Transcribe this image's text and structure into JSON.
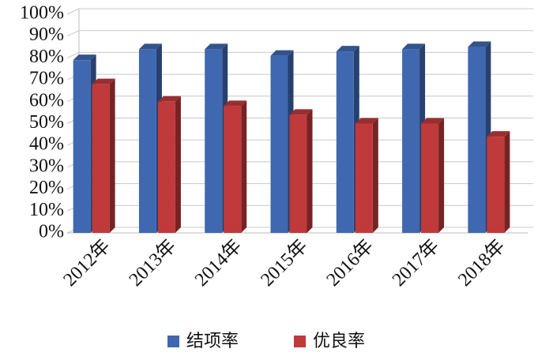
{
  "chart_data": {
    "type": "bar3d",
    "categories": [
      "2012年",
      "2013年",
      "2014年",
      "2015年",
      "2016年",
      "2017年",
      "2018年"
    ],
    "series": [
      {
        "name": "结项率",
        "color": "#4068b0",
        "values": [
          79,
          84,
          84,
          81,
          83,
          84,
          85
        ]
      },
      {
        "name": "优良率",
        "color": "#c0393b",
        "values": [
          68,
          60,
          58,
          54,
          50,
          50,
          44
        ]
      }
    ],
    "ylim": [
      0,
      100
    ],
    "yticks": [
      {
        "value": 0,
        "label": "0%"
      },
      {
        "value": 10,
        "label": "10%"
      },
      {
        "value": 20,
        "label": "20%"
      },
      {
        "value": 30,
        "label": "30%"
      },
      {
        "value": 40,
        "label": "40%"
      },
      {
        "value": 50,
        "label": "50%"
      },
      {
        "value": 60,
        "label": "60%"
      },
      {
        "value": 70,
        "label": "70%"
      },
      {
        "value": 80,
        "label": "80%"
      },
      {
        "value": 90,
        "label": "90%"
      },
      {
        "value": 100,
        "label": "100%"
      }
    ],
    "grid": true,
    "legend": "bottom"
  }
}
